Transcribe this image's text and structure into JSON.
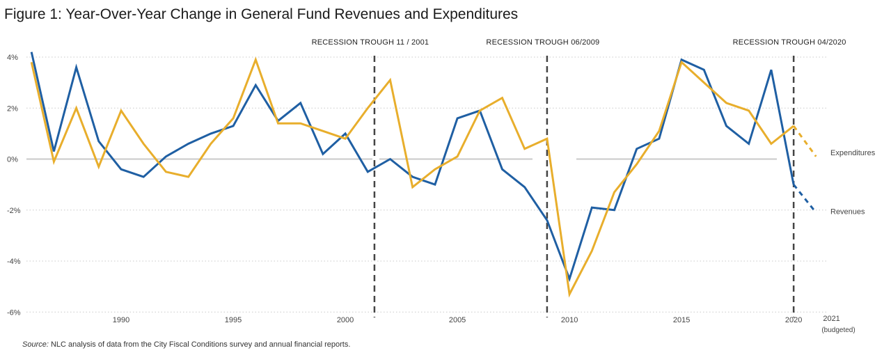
{
  "title": "Figure 1: Year-Over-Year Change in General Fund Revenues and Expenditures",
  "source": {
    "label": "Source:",
    "text": " NLC analysis of data from the City Fiscal Conditions survey and annual financial reports."
  },
  "colors": {
    "revenues": "#1f5fa3",
    "expenditures": "#e8ae2c",
    "recession": "#444444",
    "grid": "#c8c8c8",
    "zero": "#c8c8c8"
  },
  "chart_data": {
    "type": "line",
    "years": [
      1986,
      1987,
      1988,
      1989,
      1990,
      1991,
      1992,
      1993,
      1994,
      1995,
      1996,
      1997,
      1998,
      1999,
      2000,
      2001,
      2002,
      2003,
      2004,
      2005,
      2006,
      2007,
      2008,
      2009,
      2010,
      2011,
      2012,
      2013,
      2014,
      2015,
      2016,
      2017,
      2018,
      2019,
      2020,
      2021
    ],
    "series": [
      {
        "name": "Revenues",
        "color": "#1f5fa3",
        "values": [
          4.2,
          0.3,
          3.6,
          0.7,
          -0.4,
          -0.7,
          0.1,
          0.6,
          1.0,
          1.3,
          2.9,
          1.5,
          2.2,
          0.2,
          1.0,
          -0.5,
          0.0,
          -0.7,
          -1.0,
          1.6,
          1.9,
          -0.4,
          -1.1,
          -2.4,
          -4.7,
          -1.9,
          -2.0,
          0.4,
          0.8,
          3.9,
          3.5,
          1.3,
          0.6,
          3.5,
          -1.0,
          -2.1
        ],
        "projected_from": 2020
      },
      {
        "name": "Expenditures",
        "color": "#e8ae2c",
        "values": [
          3.8,
          -0.1,
          2.0,
          -0.3,
          1.9,
          0.6,
          -0.5,
          -0.7,
          0.6,
          1.6,
          3.9,
          1.4,
          1.4,
          1.1,
          0.8,
          2.0,
          3.1,
          -1.1,
          -0.4,
          0.1,
          1.9,
          2.4,
          0.4,
          0.8,
          -5.3,
          -3.6,
          -1.3,
          -0.2,
          1.1,
          3.8,
          3.0,
          2.2,
          1.9,
          0.6,
          1.3,
          0.1
        ],
        "projected_from": 2020
      }
    ],
    "x_ticks": [
      "1990",
      "1995",
      "2000",
      "2005",
      "2010",
      "2015",
      "2020"
    ],
    "x_tick_values": [
      1990,
      1995,
      2000,
      2005,
      2010,
      2015,
      2020
    ],
    "x_extra_tick": {
      "line1": "2021",
      "line2": "(budgeted)",
      "year": 2021
    },
    "y_ticks": [
      "4%",
      "2%",
      "0%",
      "-2%",
      "-4%",
      "-6%"
    ],
    "y_tick_values": [
      4,
      2,
      0,
      -2,
      -4,
      -6
    ],
    "ylim": [
      -6,
      4.5
    ],
    "xlim": [
      1985.9,
      2021.3
    ],
    "grid": "horizontal dotted",
    "recessions": [
      {
        "label": "RECESSION TROUGH 11 / 2001",
        "year": 2001.3
      },
      {
        "label": "RECESSION TROUGH 06/2009",
        "year": 2009.0
      },
      {
        "label": "RECESSION TROUGH 04/2020",
        "year": 2020.0
      }
    ],
    "end_labels": {
      "expenditures": "Expenditures",
      "revenues": "Revenues"
    }
  }
}
